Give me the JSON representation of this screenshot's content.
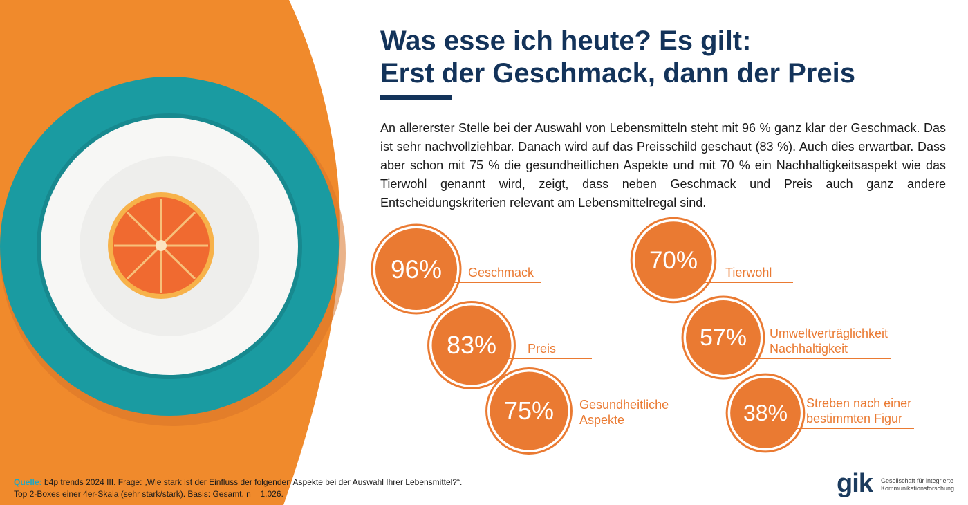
{
  "title_lines": [
    "Was esse ich heute? Es gilt:",
    "Erst der Geschmack, dann der Preis"
  ],
  "intro": "An allererster Stelle bei der Auswahl von Lebensmitteln steht mit 96 % ganz klar der Geschmack.  Das ist sehr nachvollziehbar. Danach wird auf das Preisschild geschaut (83 %). Auch dies erwartbar. Dass aber schon mit 75 % die gesundheitlichen Aspekte und mit 70 % ein Nachhaltigkeitsaspekt wie das Tierwohl genannt wird, zeigt, dass neben Geschmack und Preis auch ganz andere Entscheidungskriterien relevant am Lebensmittelregal sind.",
  "colors": {
    "accent_orange": "#ea7a32",
    "title_navy": "#13335a",
    "teal": "#1a9ba1",
    "source_cyan": "#1fa7c2"
  },
  "chart_data": {
    "type": "bubble",
    "unit": "%",
    "items": [
      {
        "value": 96,
        "label": "96%",
        "name": [
          "Geschmack"
        ]
      },
      {
        "value": 83,
        "label": "83%",
        "name": [
          "Preis"
        ]
      },
      {
        "value": 75,
        "label": "75%",
        "name": [
          "Gesundheitliche",
          "Aspekte"
        ]
      },
      {
        "value": 70,
        "label": "70%",
        "name": [
          "Tierwohl"
        ]
      },
      {
        "value": 57,
        "label": "57%",
        "name": [
          "Umweltverträglichkeit",
          "Nachhaltigkeit"
        ]
      },
      {
        "value": 38,
        "label": "38%",
        "name": [
          "Streben nach einer",
          "bestimmten Figur"
        ]
      }
    ]
  },
  "source": {
    "key": "Quelle:",
    "line1": " b4p trends 2024 III. Frage: „Wie stark ist der Einfluss der folgenden Aspekte bei der Auswahl Ihrer Lebensmittel?“.",
    "line2": "Top 2-Boxes einer 4er-Skala (sehr stark/stark). Basis: Gesamt. n = 1.026."
  },
  "logo": {
    "mark": "gik",
    "text_lines": [
      "Gesellschaft für integrierte",
      "Kommunikationsforschung"
    ]
  }
}
